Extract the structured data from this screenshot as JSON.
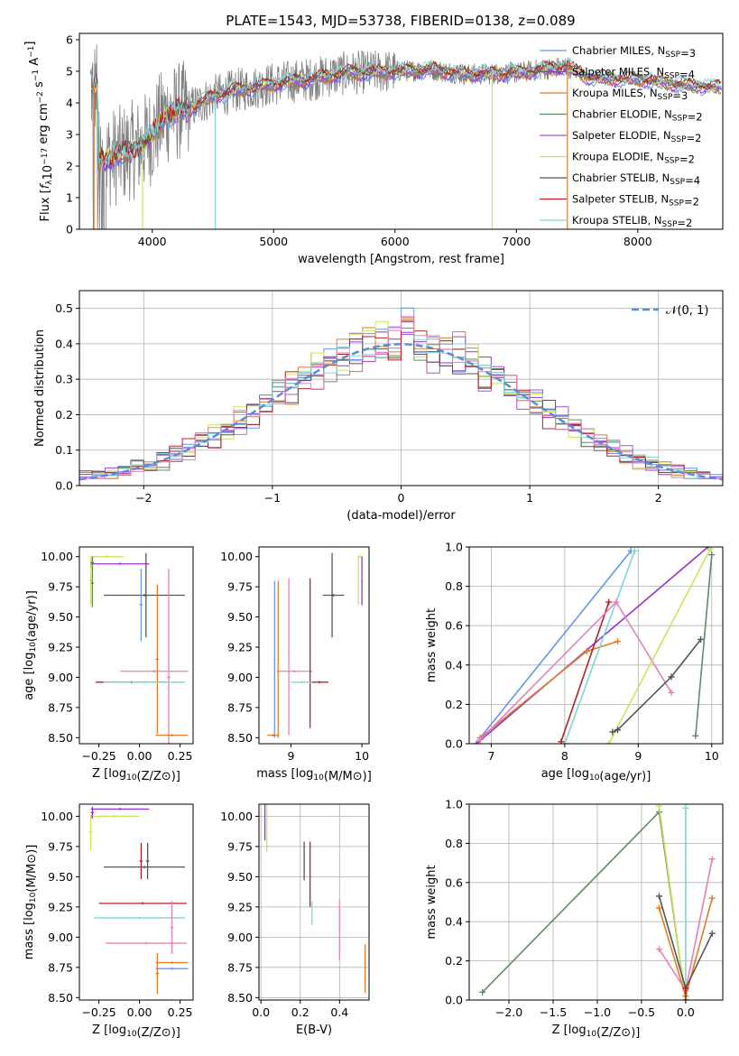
{
  "figure": {
    "title": "PLATE=1543, MJD=53738, FIBERID=0138, z=0.089"
  },
  "palette": {
    "chabrier_miles": "#6495ED",
    "salpeter_miles": "#9932CC",
    "kroupa_miles": "#E07B27",
    "chabrier_elodie": "#5E8C68",
    "salpeter_elodie": "#A94FD3",
    "kroupa_elodie": "#CDE35A",
    "chabrier_stelib": "#555555",
    "salpeter_stelib": "#B22222",
    "kroupa_stelib": "#7ED6D6",
    "data_grey": "#808080",
    "pink": "#E680B8",
    "normal_curve": "#5B8BD9",
    "grid": "#b0b0b0"
  },
  "chart_data": [
    {
      "id": "spectrum",
      "type": "line",
      "xlabel": "wavelength [Angstrom, rest frame]",
      "ylabel": "Flux [f_λ10^{-17} erg cm^{-2} s^{-1} A^{-1}]",
      "xlim": [
        3400,
        8700
      ],
      "ylim": [
        0,
        6.2
      ],
      "xticks": [
        4000,
        5000,
        6000,
        7000,
        8000
      ],
      "yticks": [
        0,
        1,
        2,
        3,
        4,
        5,
        6
      ],
      "grid": false,
      "legend_position": "right",
      "legend": [
        {
          "label": "Chabrier MILES, N_SSP=3",
          "color_key": "chabrier_miles"
        },
        {
          "label": "Salpeter MILES, N_SSP=4",
          "color_key": "salpeter_miles"
        },
        {
          "label": "Kroupa MILES, N_SSP=3",
          "color_key": "kroupa_miles"
        },
        {
          "label": "Chabrier ELODIE, N_SSP=2",
          "color_key": "chabrier_elodie"
        },
        {
          "label": "Salpeter ELODIE, N_SSP=2",
          "color_key": "salpeter_elodie"
        },
        {
          "label": "Kroupa ELODIE, N_SSP=2",
          "color_key": "kroupa_elodie"
        },
        {
          "label": "Chabrier STELIB, N_SSP=4",
          "color_key": "chabrier_stelib"
        },
        {
          "label": "Salpeter STELIB, N_SSP=2",
          "color_key": "salpeter_stelib"
        },
        {
          "label": "Kroupa STELIB, N_SSP=2",
          "color_key": "kroupa_stelib"
        }
      ],
      "continuum": [
        [
          3550,
          2.2
        ],
        [
          3700,
          2.3
        ],
        [
          3900,
          2.6
        ],
        [
          4000,
          3.0
        ],
        [
          4100,
          3.6
        ],
        [
          4300,
          3.8
        ],
        [
          4500,
          4.2
        ],
        [
          4700,
          4.4
        ],
        [
          5000,
          4.6
        ],
        [
          5300,
          4.75
        ],
        [
          5600,
          4.95
        ],
        [
          6000,
          5.0
        ],
        [
          6300,
          5.05
        ],
        [
          6600,
          4.9
        ],
        [
          7000,
          4.95
        ],
        [
          7300,
          5.1
        ],
        [
          7420,
          5.15
        ],
        [
          7600,
          4.8
        ],
        [
          8000,
          4.75
        ],
        [
          8300,
          4.6
        ],
        [
          8600,
          4.5
        ]
      ]
    },
    {
      "id": "residuals",
      "type": "line",
      "xlabel": "(data-model)/error",
      "ylabel": "Normed distribution",
      "xlim": [
        -2.5,
        2.5
      ],
      "ylim": [
        0,
        0.55
      ],
      "xticks": [
        -2,
        -1,
        0,
        1,
        2
      ],
      "yticks": [
        0.0,
        0.1,
        0.2,
        0.3,
        0.4,
        0.5
      ],
      "grid": true,
      "legend_position": "top-right",
      "legend": [
        {
          "label": "𝒩(0, 1)",
          "color_key": "normal_curve"
        }
      ],
      "normal_curve": {
        "mean": 0,
        "sigma": 1
      }
    },
    {
      "id": "age-vs-Z",
      "type": "scatter",
      "xlabel": "Z [log10(Z/Z⊙)]",
      "ylabel": "age [log10(age/yr)]",
      "xlim": [
        -0.37,
        0.33
      ],
      "ylim": [
        8.45,
        10.08
      ],
      "xticks": [
        -0.25,
        0.0,
        0.25
      ],
      "yticks": [
        8.5,
        8.75,
        9.0,
        9.25,
        9.5,
        9.75,
        10.0
      ],
      "grid": false,
      "errorbars": [
        {
          "color_key": "kroupa_elodie",
          "x": -0.2,
          "xerr": 0.1,
          "y": 10.0,
          "yerr": 0.01
        },
        {
          "color_key": "kroupa_elodie",
          "x": -0.3,
          "xerr": 0.01,
          "y": 9.8,
          "yerr": 0.2
        },
        {
          "color_key": "salpeter_miles",
          "x": -0.12,
          "xerr": 0.18,
          "y": 9.94,
          "yerr": 0.01
        },
        {
          "color_key": "salpeter_miles",
          "x": -0.29,
          "xerr": 0.01,
          "y": 9.95,
          "yerr": 0.05
        },
        {
          "color_key": "chabrier_elodie",
          "x": -0.29,
          "xerr": 0.01,
          "y": 9.78,
          "yerr": 0.2
        },
        {
          "color_key": "chabrier_stelib",
          "x": 0.03,
          "xerr": 0.25,
          "y": 9.68,
          "yerr": 0.01
        },
        {
          "color_key": "chabrier_stelib",
          "x": 0.04,
          "xerr": 0.01,
          "y": 9.68,
          "yerr": 0.35
        },
        {
          "color_key": "chabrier_miles",
          "x": 0.01,
          "xerr": 0.01,
          "y": 9.6,
          "yerr": 0.3
        },
        {
          "color_key": "kroupa_miles",
          "x": 0.11,
          "xerr": 0.01,
          "y": 9.15,
          "yerr": 0.62
        },
        {
          "color_key": "pink",
          "x": 0.18,
          "xerr": 0.01,
          "y": 9.0,
          "yerr": 0.9
        },
        {
          "color_key": "pink",
          "x": 0.09,
          "xerr": 0.21,
          "y": 9.05,
          "yerr": 0.01
        },
        {
          "color_key": "salpeter_stelib",
          "x": -0.05,
          "xerr": 0.22,
          "y": 8.96,
          "yerr": 0.01
        },
        {
          "color_key": "kroupa_stelib",
          "x": 0.03,
          "xerr": 0.25,
          "y": 8.96,
          "yerr": 0.01
        },
        {
          "color_key": "kroupa_miles",
          "x": 0.2,
          "xerr": 0.1,
          "y": 8.52,
          "yerr": 0.01
        }
      ]
    },
    {
      "id": "age-vs-mass",
      "type": "scatter",
      "xlabel": "mass [log10(M/M⊙)]",
      "ylabel": "",
      "xlim": [
        8.55,
        10.1
      ],
      "ylim": [
        8.45,
        10.08
      ],
      "xticks": [
        9,
        10
      ],
      "yticks": [
        8.5,
        8.75,
        9.0,
        9.25,
        9.5,
        9.75,
        10.0
      ],
      "grid": false,
      "errorbars": [
        {
          "color_key": "kroupa_elodie",
          "x": 9.97,
          "xerr": 0.03,
          "y": 10.0,
          "yerr": 0.01
        },
        {
          "color_key": "kroupa_elodie",
          "x": 9.95,
          "xerr": 0.01,
          "y": 9.8,
          "yerr": 0.2
        },
        {
          "color_key": "salpeter_miles",
          "x": 10.0,
          "xerr": 0.01,
          "y": 9.8,
          "yerr": 0.2
        },
        {
          "color_key": "chabrier_stelib",
          "x": 9.58,
          "xerr": 0.01,
          "y": 9.68,
          "yerr": 0.35
        },
        {
          "color_key": "chabrier_stelib",
          "x": 9.6,
          "xerr": 0.15,
          "y": 9.68,
          "yerr": 0.01
        },
        {
          "color_key": "chabrier_miles",
          "x": 8.77,
          "xerr": 0.01,
          "y": 9.15,
          "yerr": 0.65
        },
        {
          "color_key": "pink",
          "x": 8.97,
          "xerr": 0.01,
          "y": 9.17,
          "yerr": 0.65
        },
        {
          "color_key": "pink",
          "x": 9.05,
          "xerr": 0.25,
          "y": 9.05,
          "yerr": 0.01
        },
        {
          "color_key": "salpeter_stelib",
          "x": 9.27,
          "xerr": 0.01,
          "y": 9.2,
          "yerr": 0.62
        },
        {
          "color_key": "salpeter_stelib",
          "x": 9.4,
          "xerr": 0.13,
          "y": 8.96,
          "yerr": 0.01
        },
        {
          "color_key": "kroupa_stelib",
          "x": 9.15,
          "xerr": 0.15,
          "y": 8.96,
          "yerr": 0.01
        },
        {
          "color_key": "kroupa_miles",
          "x": 8.82,
          "xerr": 0.01,
          "y": 9.15,
          "yerr": 0.65
        },
        {
          "color_key": "kroupa_miles",
          "x": 8.75,
          "xerr": 0.08,
          "y": 8.52,
          "yerr": 0.01
        }
      ]
    },
    {
      "id": "weight-vs-age",
      "type": "line",
      "xlabel": "age  [log10(age/yr)]",
      "ylabel": "mass weight",
      "xlim": [
        6.7,
        10.15
      ],
      "ylim": [
        0,
        1.0
      ],
      "xticks": [
        7,
        8,
        9,
        10
      ],
      "yticks": [
        0.0,
        0.2,
        0.4,
        0.6,
        0.8,
        1.0
      ],
      "grid": true,
      "series": [
        {
          "color_key": "chabrier_miles",
          "x": [
            6.85,
            8.9
          ],
          "y": [
            0.03,
            0.98
          ]
        },
        {
          "color_key": "salpeter_miles",
          "x": [
            6.8,
            9.95
          ],
          "y": [
            0.0,
            1.0
          ]
        },
        {
          "color_key": "kroupa_miles",
          "x": [
            6.85,
            8.3,
            8.72
          ],
          "y": [
            0.03,
            0.47,
            0.52
          ]
        },
        {
          "color_key": "kroupa_stelib",
          "x": [
            8.0,
            8.95
          ],
          "y": [
            0.0,
            0.98
          ]
        },
        {
          "color_key": "salpeter_stelib",
          "x": [
            7.95,
            8.6
          ],
          "y": [
            0.01,
            0.72
          ]
        },
        {
          "color_key": "pink",
          "x": [
            6.85,
            8.7,
            9.45
          ],
          "y": [
            0.02,
            0.72,
            0.26
          ]
        },
        {
          "color_key": "kroupa_elodie",
          "x": [
            8.6,
            9.98
          ],
          "y": [
            0.0,
            0.99
          ]
        },
        {
          "color_key": "chabrier_stelib",
          "x": [
            8.65,
            8.72,
            9.45,
            9.85
          ],
          "y": [
            0.06,
            0.07,
            0.34,
            0.53
          ]
        },
        {
          "color_key": "chabrier_elodie",
          "x": [
            9.78,
            10.0
          ],
          "y": [
            0.04,
            0.96
          ]
        }
      ]
    },
    {
      "id": "mass-vs-Z",
      "type": "scatter",
      "xlabel": "Z [log10(Z/Z⊙)]",
      "ylabel": "mass [log10(M/M⊙)]",
      "xlim": [
        -0.37,
        0.33
      ],
      "ylim": [
        8.48,
        10.1
      ],
      "xticks": [
        -0.25,
        0.0,
        0.25
      ],
      "yticks": [
        8.5,
        8.75,
        9.0,
        9.25,
        9.5,
        9.75,
        10.0
      ],
      "grid": false,
      "errorbars": [
        {
          "color_key": "salpeter_miles",
          "x": -0.12,
          "xerr": 0.18,
          "y": 10.06,
          "yerr": 0.01
        },
        {
          "color_key": "kroupa_elodie",
          "x": -0.15,
          "xerr": 0.15,
          "y": 10.0,
          "yerr": 0.01
        },
        {
          "color_key": "salpeter_miles",
          "x": -0.29,
          "xerr": 0.01,
          "y": 10.03,
          "yerr": 0.05
        },
        {
          "color_key": "kroupa_elodie",
          "x": -0.3,
          "xerr": 0.01,
          "y": 9.87,
          "yerr": 0.15
        },
        {
          "color_key": "chabrier_stelib",
          "x": 0.03,
          "xerr": 0.25,
          "y": 9.58,
          "yerr": 0.01
        },
        {
          "color_key": "chabrier_stelib",
          "x": 0.05,
          "xerr": 0.01,
          "y": 9.63,
          "yerr": 0.15
        },
        {
          "color_key": "salpeter_stelib",
          "x": 0.01,
          "xerr": 0.01,
          "y": 9.63,
          "yerr": 0.15
        },
        {
          "color_key": "salpeter_stelib",
          "x": 0.02,
          "xerr": 0.27,
          "y": 9.28,
          "yerr": 0.01
        },
        {
          "color_key": "kroupa_stelib",
          "x": 0.0,
          "xerr": 0.28,
          "y": 9.16,
          "yerr": 0.01
        },
        {
          "color_key": "pink",
          "x": 0.2,
          "xerr": 0.01,
          "y": 9.08,
          "yerr": 0.22
        },
        {
          "color_key": "pink",
          "x": 0.04,
          "xerr": 0.25,
          "y": 8.95,
          "yerr": 0.01
        },
        {
          "color_key": "kroupa_miles",
          "x": 0.2,
          "xerr": 0.1,
          "y": 8.79,
          "yerr": 0.01
        },
        {
          "color_key": "kroupa_miles",
          "x": 0.11,
          "xerr": 0.01,
          "y": 8.7,
          "yerr": 0.17
        },
        {
          "color_key": "chabrier_miles",
          "x": 0.2,
          "xerr": 0.1,
          "y": 8.74,
          "yerr": 0.01
        }
      ]
    },
    {
      "id": "mass-vs-EBV",
      "type": "scatter",
      "xlabel": "E(B-V)",
      "ylabel": "",
      "xlim": [
        -0.01,
        0.55
      ],
      "ylim": [
        8.48,
        10.1
      ],
      "xticks": [
        0.0,
        0.2,
        0.4
      ],
      "yticks": [
        8.5,
        8.75,
        9.0,
        9.25,
        9.5,
        9.75,
        10.0
      ],
      "grid": true,
      "errorbars": [
        {
          "color_key": "salpeter_miles",
          "x": 0.02,
          "xerr": 0.0,
          "y": 9.95,
          "yerr": 0.15
        },
        {
          "color_key": "kroupa_elodie",
          "x": 0.03,
          "xerr": 0.0,
          "y": 9.9,
          "yerr": 0.2
        },
        {
          "color_key": "chabrier_stelib",
          "x": 0.22,
          "xerr": 0.0,
          "y": 9.63,
          "yerr": 0.16
        },
        {
          "color_key": "salpeter_stelib",
          "x": 0.25,
          "xerr": 0.0,
          "y": 9.52,
          "yerr": 0.27
        },
        {
          "color_key": "kroupa_stelib",
          "x": 0.26,
          "xerr": 0.0,
          "y": 9.2,
          "yerr": 0.1
        },
        {
          "color_key": "pink",
          "x": 0.4,
          "xerr": 0.0,
          "y": 9.06,
          "yerr": 0.25
        },
        {
          "color_key": "kroupa_miles",
          "x": 0.53,
          "xerr": 0.0,
          "y": 8.74,
          "yerr": 0.2
        }
      ]
    },
    {
      "id": "weight-vs-Z",
      "type": "line",
      "xlabel": "Z [log10(Z/Z⊙)]",
      "ylabel": "mass weight",
      "xlim": [
        -2.45,
        0.42
      ],
      "ylim": [
        0,
        1.0
      ],
      "xticks": [
        -2.0,
        -1.5,
        -1.0,
        -0.5,
        0.0
      ],
      "yticks": [
        0.0,
        0.2,
        0.4,
        0.6,
        0.8,
        1.0
      ],
      "grid": true,
      "series": [
        {
          "color_key": "chabrier_elodie",
          "x": [
            -2.3,
            -0.3,
            0.0
          ],
          "y": [
            0.04,
            0.96,
            0.0
          ]
        },
        {
          "color_key": "kroupa_elodie",
          "x": [
            -0.3,
            0.0
          ],
          "y": [
            0.99,
            0.0
          ]
        },
        {
          "color_key": "kroupa_stelib",
          "x": [
            0.0,
            0.0
          ],
          "y": [
            0.0,
            0.98
          ]
        },
        {
          "color_key": "pink",
          "x": [
            0.3,
            0.0,
            -0.3
          ],
          "y": [
            0.72,
            0.05,
            0.26
          ]
        },
        {
          "color_key": "kroupa_miles",
          "x": [
            -0.3,
            0.0,
            0.3
          ],
          "y": [
            0.47,
            0.02,
            0.52
          ]
        },
        {
          "color_key": "chabrier_stelib",
          "x": [
            -0.3,
            0.0,
            0.3
          ],
          "y": [
            0.53,
            0.06,
            0.34
          ]
        },
        {
          "color_key": "salpeter_stelib",
          "x": [
            0.0,
            0.0
          ],
          "y": [
            0.0,
            0.06
          ]
        }
      ]
    }
  ]
}
